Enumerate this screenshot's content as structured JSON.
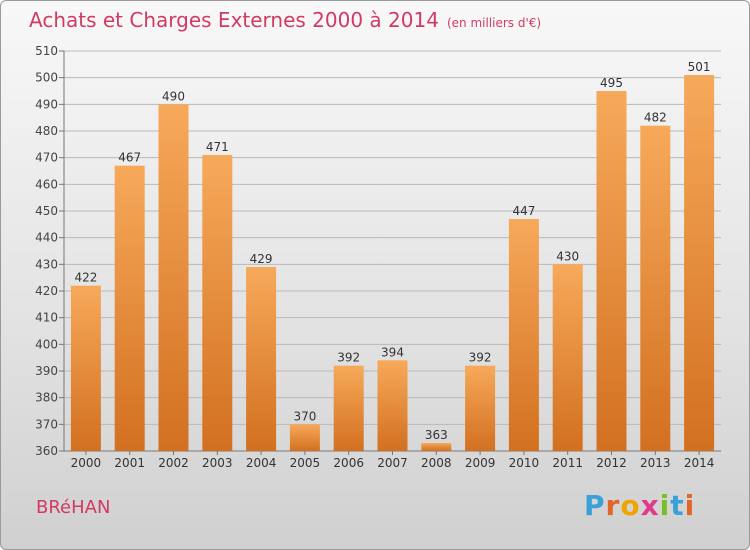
{
  "title": "Achats et Charges Externes 2000 à 2014",
  "title_unit": "(en milliers d'€)",
  "commune": "BRéHAN",
  "logo": {
    "letters": [
      "P",
      "r",
      "o",
      "x",
      "i",
      "t",
      "i"
    ],
    "colors": [
      "#3aa0d8",
      "#e2662a",
      "#f0a400",
      "#e23a8a",
      "#7cbc2a",
      "#3aa0d8",
      "#e2662a"
    ]
  },
  "colors": {
    "bar_light": "#f7a95a",
    "bar_dark": "#d27020",
    "title": "#d23a63",
    "grid": "#b9b9b9"
  },
  "chart_data": {
    "type": "bar",
    "categories": [
      "2000",
      "2001",
      "2002",
      "2003",
      "2004",
      "2005",
      "2006",
      "2007",
      "2008",
      "2009",
      "2010",
      "2011",
      "2012",
      "2013",
      "2014"
    ],
    "values": [
      422,
      467,
      490,
      471,
      429,
      370,
      392,
      394,
      363,
      392,
      447,
      430,
      495,
      482,
      501
    ],
    "ylim": [
      360,
      510
    ],
    "yticks": [
      360,
      370,
      380,
      390,
      400,
      410,
      420,
      430,
      440,
      450,
      460,
      470,
      480,
      490,
      500,
      510
    ],
    "grid": true,
    "data_labels": true
  }
}
